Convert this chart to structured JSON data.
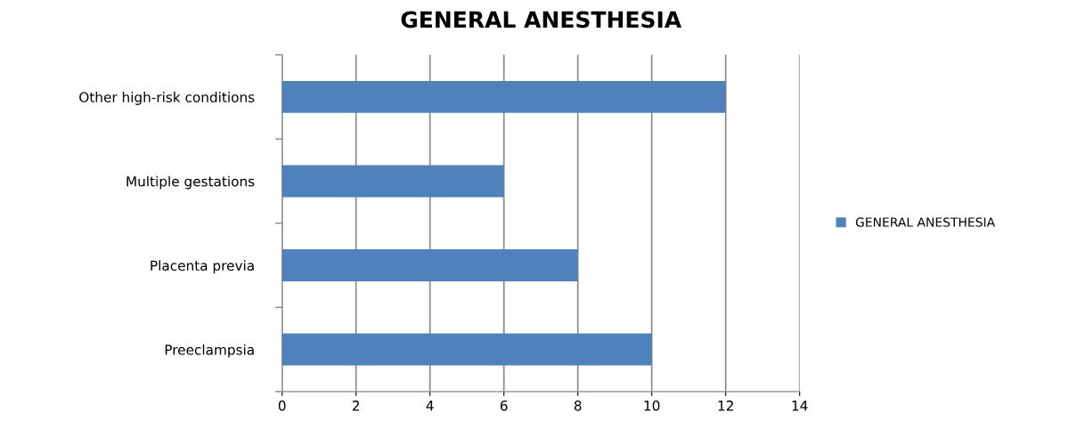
{
  "chart_data": {
    "type": "bar",
    "orientation": "horizontal",
    "title": "GENERAL ANESTHESIA",
    "categories": [
      "Other high-risk conditions",
      "Multiple gestations",
      "Placenta previa",
      "Preeclampsia"
    ],
    "series": [
      {
        "name": "GENERAL ANESTHESIA",
        "color": "#4f81bd",
        "values": [
          12,
          6,
          8,
          10
        ]
      }
    ],
    "xlim": [
      0,
      14
    ],
    "xticks": [
      0,
      2,
      4,
      6,
      8,
      10,
      12,
      14
    ],
    "grid": "x",
    "legend": "right"
  }
}
